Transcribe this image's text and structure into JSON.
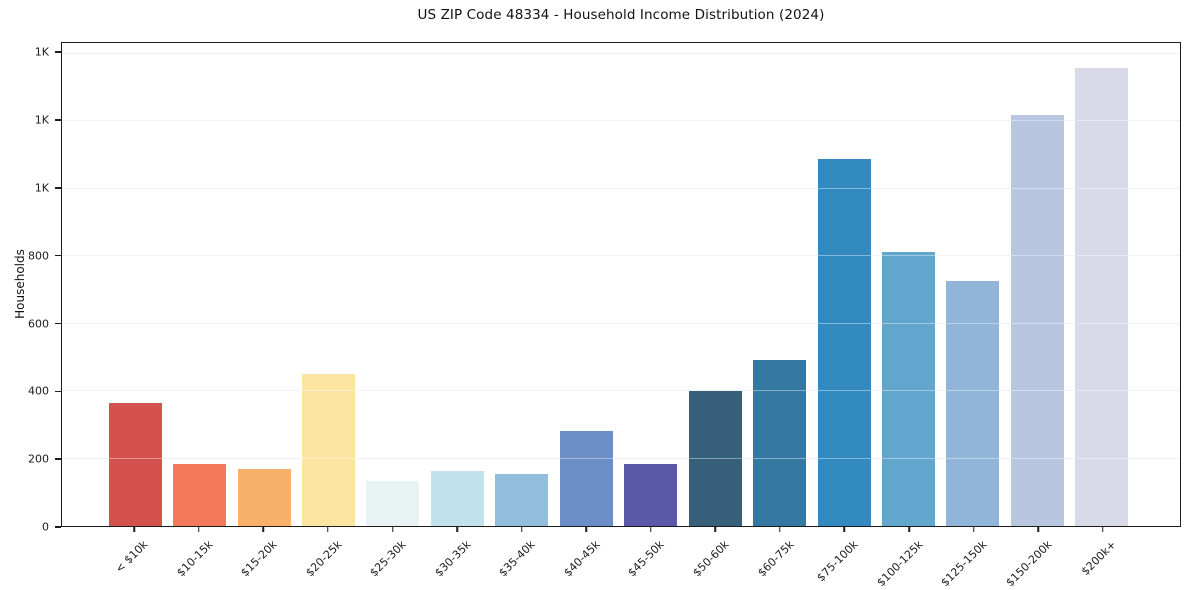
{
  "chart_data": {
    "type": "bar",
    "title": "US ZIP Code 48334 - Household Income Distribution (2024)",
    "xlabel": "",
    "ylabel": "Households",
    "categories": [
      "< $10k",
      "$10-15k",
      "$15-20k",
      "$20-25k",
      "$25-30k",
      "$30-35k",
      "$35-40k",
      "$40-45k",
      "$45-50k",
      "$50-60k",
      "$60-75k",
      "$75-100k",
      "$100-125k",
      "$125-150k",
      "$150-200k",
      "$200k+"
    ],
    "values": [
      365,
      183,
      168,
      450,
      134,
      164,
      153,
      281,
      185,
      401,
      491,
      1086,
      810,
      724,
      1218,
      1355
    ],
    "bar_colors": [
      "#d4524e",
      "#f2795b",
      "#f9b06a",
      "#fce5a0",
      "#e8f3f3",
      "#c1e1ec",
      "#92bedb",
      "#6a8ec5",
      "#5a58a9",
      "#36607a",
      "#3579a2",
      "#338ac1",
      "#61a7cd",
      "#90b5d8",
      "#b8c6df",
      "#d8dae7"
    ],
    "ylim": [
      0,
      1430
    ],
    "ytick_values": [
      0,
      200,
      400,
      600,
      800,
      1000,
      1200,
      1400
    ],
    "ytick_labels": [
      "0",
      "200",
      "400",
      "600",
      "800",
      "1K",
      "1K",
      "1K"
    ],
    "grid": true,
    "grid_color": "#e8e9ea",
    "legend": null,
    "plot_background": "#ffffff",
    "spine_color": "#1c1c1c"
  }
}
